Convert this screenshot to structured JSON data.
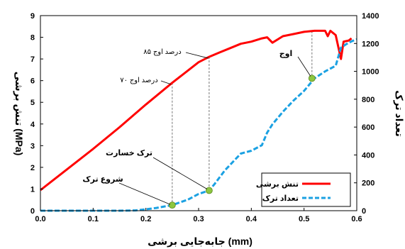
{
  "chart_data": {
    "type": "line",
    "xlabel": "جابه‌جایی برشی (mm)",
    "ylabel_left": "تنش برشی (MPa)",
    "ylabel_right": "تعداد ترک",
    "xlim": [
      0,
      0.6
    ],
    "ylim_left": [
      0,
      9
    ],
    "ylim_right": [
      0,
      1400
    ],
    "x_ticks": [
      "0.0",
      "0.1",
      "0.2",
      "0.3",
      "0.4",
      "0.5",
      "0.6"
    ],
    "y_left_ticks": [
      "0",
      "1",
      "2",
      "3",
      "4",
      "5",
      "6",
      "7",
      "8",
      "9"
    ],
    "y_right_ticks": [
      "0",
      "200",
      "400",
      "600",
      "800",
      "1000",
      "1200",
      "1400"
    ],
    "grid": false,
    "legend_position": "bottom-right",
    "series": [
      {
        "name": "تنش برشی",
        "axis": "left",
        "color": "#ff0000",
        "style": "solid",
        "points": [
          [
            0,
            0.95
          ],
          [
            0.05,
            1.9
          ],
          [
            0.1,
            2.85
          ],
          [
            0.15,
            3.85
          ],
          [
            0.2,
            4.9
          ],
          [
            0.25,
            5.9
          ],
          [
            0.3,
            6.85
          ],
          [
            0.32,
            7.1
          ],
          [
            0.34,
            7.3
          ],
          [
            0.36,
            7.5
          ],
          [
            0.38,
            7.7
          ],
          [
            0.4,
            7.8
          ],
          [
            0.42,
            7.95
          ],
          [
            0.43,
            8.0
          ],
          [
            0.44,
            7.75
          ],
          [
            0.46,
            8.05
          ],
          [
            0.48,
            8.15
          ],
          [
            0.5,
            8.25
          ],
          [
            0.52,
            8.3
          ],
          [
            0.54,
            8.3
          ],
          [
            0.545,
            8.05
          ],
          [
            0.55,
            8.3
          ],
          [
            0.56,
            8.1
          ],
          [
            0.57,
            7.0
          ],
          [
            0.575,
            7.8
          ],
          [
            0.585,
            7.85
          ],
          [
            0.59,
            7.95
          ]
        ]
      },
      {
        "name": "تعداد ترک",
        "axis": "right",
        "color": "#1ba1e2",
        "style": "dashed",
        "points": [
          [
            0,
            0
          ],
          [
            0.15,
            0
          ],
          [
            0.18,
            2
          ],
          [
            0.2,
            10
          ],
          [
            0.22,
            20
          ],
          [
            0.25,
            40
          ],
          [
            0.28,
            80
          ],
          [
            0.3,
            120
          ],
          [
            0.32,
            145
          ],
          [
            0.33,
            190
          ],
          [
            0.34,
            240
          ],
          [
            0.35,
            290
          ],
          [
            0.36,
            330
          ],
          [
            0.38,
            410
          ],
          [
            0.4,
            430
          ],
          [
            0.42,
            470
          ],
          [
            0.43,
            560
          ],
          [
            0.44,
            620
          ],
          [
            0.46,
            710
          ],
          [
            0.48,
            790
          ],
          [
            0.5,
            860
          ],
          [
            0.52,
            950
          ],
          [
            0.54,
            1000
          ],
          [
            0.56,
            1040
          ],
          [
            0.57,
            1170
          ],
          [
            0.58,
            1195
          ],
          [
            0.59,
            1215
          ],
          [
            0.6,
            1230
          ]
        ]
      }
    ],
    "markers": [
      {
        "x": 0.25,
        "y_right": 40,
        "color": "#8dc63f"
      },
      {
        "x": 0.32,
        "y_right": 145,
        "color": "#8dc63f"
      },
      {
        "x": 0.515,
        "y_right": 950,
        "color": "#8dc63f"
      }
    ],
    "annotations": {
      "p70": "۷۰ درصد اوج",
      "p85": "۸۵ درصد اوج",
      "peak": "اوج",
      "damage": "ترک خسارت",
      "start": "شروع ترک"
    }
  }
}
